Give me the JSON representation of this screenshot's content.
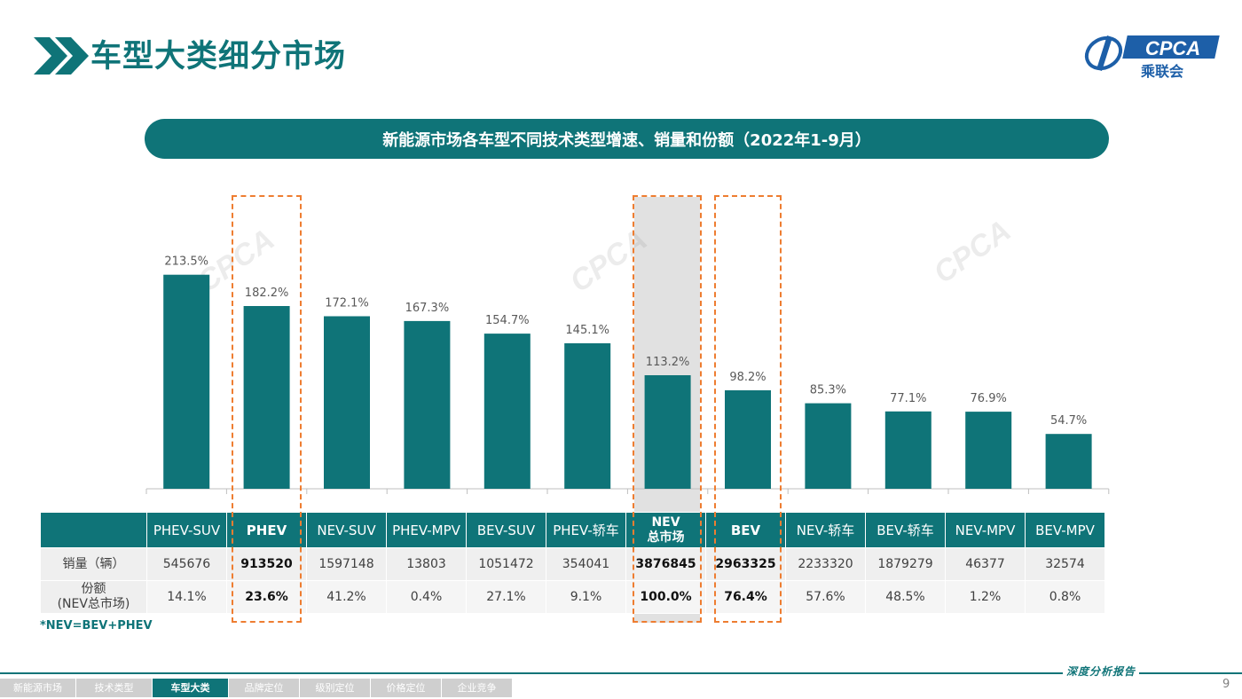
{
  "header": {
    "title": "车型大类细分市场",
    "logo_text": "CPCA",
    "logo_sub": "乘联会"
  },
  "banner": {
    "text": "新能源市场各车型不同技术类型增速、销量和份额（2022年1-9月）"
  },
  "chart_data": {
    "type": "bar",
    "categories": [
      "PHEV-SUV",
      "PHEV",
      "NEV-SUV",
      "PHEV-MPV",
      "BEV-SUV",
      "PHEV-轿车",
      "NEV总市场",
      "BEV",
      "NEV-轿车",
      "BEV-轿车",
      "NEV-MPV",
      "BEV-MPV"
    ],
    "values": [
      213.5,
      182.2,
      172.1,
      167.3,
      154.7,
      145.1,
      113.2,
      98.2,
      85.3,
      77.1,
      76.9,
      54.7
    ],
    "labels": [
      "213.5%",
      "182.2%",
      "172.1%",
      "167.3%",
      "154.7%",
      "145.1%",
      "113.2%",
      "98.2%",
      "85.3%",
      "77.1%",
      "76.9%",
      "54.7%"
    ],
    "unit": "%",
    "ylim": [
      0,
      230
    ],
    "bar_color": "#0f7478",
    "highlight_color": "#ee7d31",
    "grid": false
  },
  "table": {
    "headers": [
      "PHEV-SUV",
      "PHEV",
      "NEV-SUV",
      "PHEV-MPV",
      "BEV-SUV",
      "PHEV-轿车",
      "NEV",
      "BEV",
      "NEV-轿车",
      "BEV-轿车",
      "NEV-MPV",
      "BEV-MPV"
    ],
    "nev_header_line2": "总市场",
    "sales_label": "销量（辆）",
    "share_label_line1": "份额",
    "share_label_line2": "(NEV总市场)",
    "sales": [
      "545676",
      "913520",
      "1597148",
      "13803",
      "1051472",
      "354041",
      "3876845",
      "2963325",
      "2233320",
      "1879279",
      "46377",
      "32574"
    ],
    "shares": [
      "14.1%",
      "23.6%",
      "41.2%",
      "0.4%",
      "27.1%",
      "9.1%",
      "100.0%",
      "76.4%",
      "57.6%",
      "48.5%",
      "1.2%",
      "0.8%"
    ]
  },
  "footnote": "*NEV=BEV+PHEV",
  "footer": {
    "tag": "深度分析报告",
    "page": "9",
    "nav": [
      "新能源市场",
      "技术类型",
      "车型大类",
      "品牌定位",
      "级别定位",
      "价格定位",
      "企业竞争"
    ],
    "active_index": 2
  }
}
